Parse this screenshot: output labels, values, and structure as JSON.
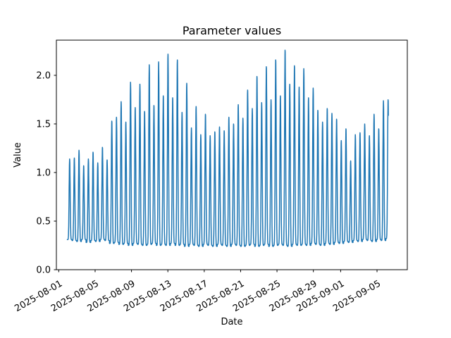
{
  "chart_data": {
    "type": "line",
    "title": "Parameter values",
    "xlabel": "Date",
    "ylabel": "Value",
    "line_color": "#1f77b4",
    "axes_color": "#000000",
    "background_color": "#ffffff",
    "grid": false,
    "legend": "none",
    "x_epoch": "2025-08-01",
    "xlim_days": [
      -0.26,
      38.33
    ],
    "ylim": [
      0.0,
      2.362
    ],
    "x_ticks": [
      {
        "label": "2025-08-01",
        "day": 0
      },
      {
        "label": "2025-08-05",
        "day": 4
      },
      {
        "label": "2025-08-09",
        "day": 8
      },
      {
        "label": "2025-08-13",
        "day": 12
      },
      {
        "label": "2025-08-17",
        "day": 16
      },
      {
        "label": "2025-08-21",
        "day": 20
      },
      {
        "label": "2025-08-25",
        "day": 24
      },
      {
        "label": "2025-08-29",
        "day": 28
      },
      {
        "label": "2025-09-01",
        "day": 31
      },
      {
        "label": "2025-09-05",
        "day": 35
      }
    ],
    "y_ticks": [
      {
        "label": "0.0",
        "value": 0.0
      },
      {
        "label": "0.5",
        "value": 0.5
      },
      {
        "label": "1.0",
        "value": 1.0
      },
      {
        "label": "1.5",
        "value": 1.5
      },
      {
        "label": "2.0",
        "value": 2.0
      }
    ],
    "series": [
      {
        "name": "parameter-values",
        "shape": "periodic-spikes",
        "first_peak_day": 1.2,
        "period_days": 0.515,
        "pulse_power": 8,
        "lead_in_days": 0.26,
        "tail_days": 0.03,
        "peaks": [
          1.14,
          1.15,
          1.23,
          1.07,
          1.14,
          1.21,
          1.1,
          1.26,
          1.13,
          1.53,
          1.57,
          1.73,
          1.52,
          1.93,
          1.67,
          1.91,
          1.63,
          2.11,
          1.69,
          2.14,
          1.79,
          2.22,
          1.77,
          2.16,
          1.62,
          1.92,
          1.46,
          1.68,
          1.39,
          1.6,
          1.38,
          1.42,
          1.47,
          1.43,
          1.57,
          1.5,
          1.7,
          1.56,
          1.85,
          1.66,
          1.99,
          1.72,
          2.09,
          1.75,
          2.16,
          1.79,
          2.26,
          1.91,
          2.1,
          1.88,
          2.07,
          1.77,
          1.87,
          1.64,
          1.52,
          1.66,
          1.61,
          1.55,
          1.33,
          1.45,
          1.12,
          1.39,
          1.41,
          1.5,
          1.38,
          1.6,
          1.45,
          1.74,
          1.75
        ],
        "baselines": [
          0.31,
          0.3,
          0.29,
          0.31,
          0.28,
          0.3,
          0.29,
          0.31,
          0.3,
          0.27,
          0.28,
          0.26,
          0.27,
          0.25,
          0.27,
          0.26,
          0.25,
          0.26,
          0.27,
          0.25,
          0.26,
          0.25,
          0.27,
          0.25,
          0.26,
          0.24,
          0.26,
          0.25,
          0.24,
          0.26,
          0.25,
          0.24,
          0.26,
          0.25,
          0.24,
          0.26,
          0.25,
          0.24,
          0.25,
          0.26,
          0.24,
          0.25,
          0.26,
          0.24,
          0.25,
          0.26,
          0.25,
          0.24,
          0.26,
          0.25,
          0.26,
          0.25,
          0.27,
          0.26,
          0.25,
          0.27,
          0.26,
          0.28,
          0.27,
          0.29,
          0.28,
          0.3,
          0.29,
          0.31,
          0.3,
          0.29,
          0.31,
          0.3,
          0.32
        ]
      }
    ]
  }
}
